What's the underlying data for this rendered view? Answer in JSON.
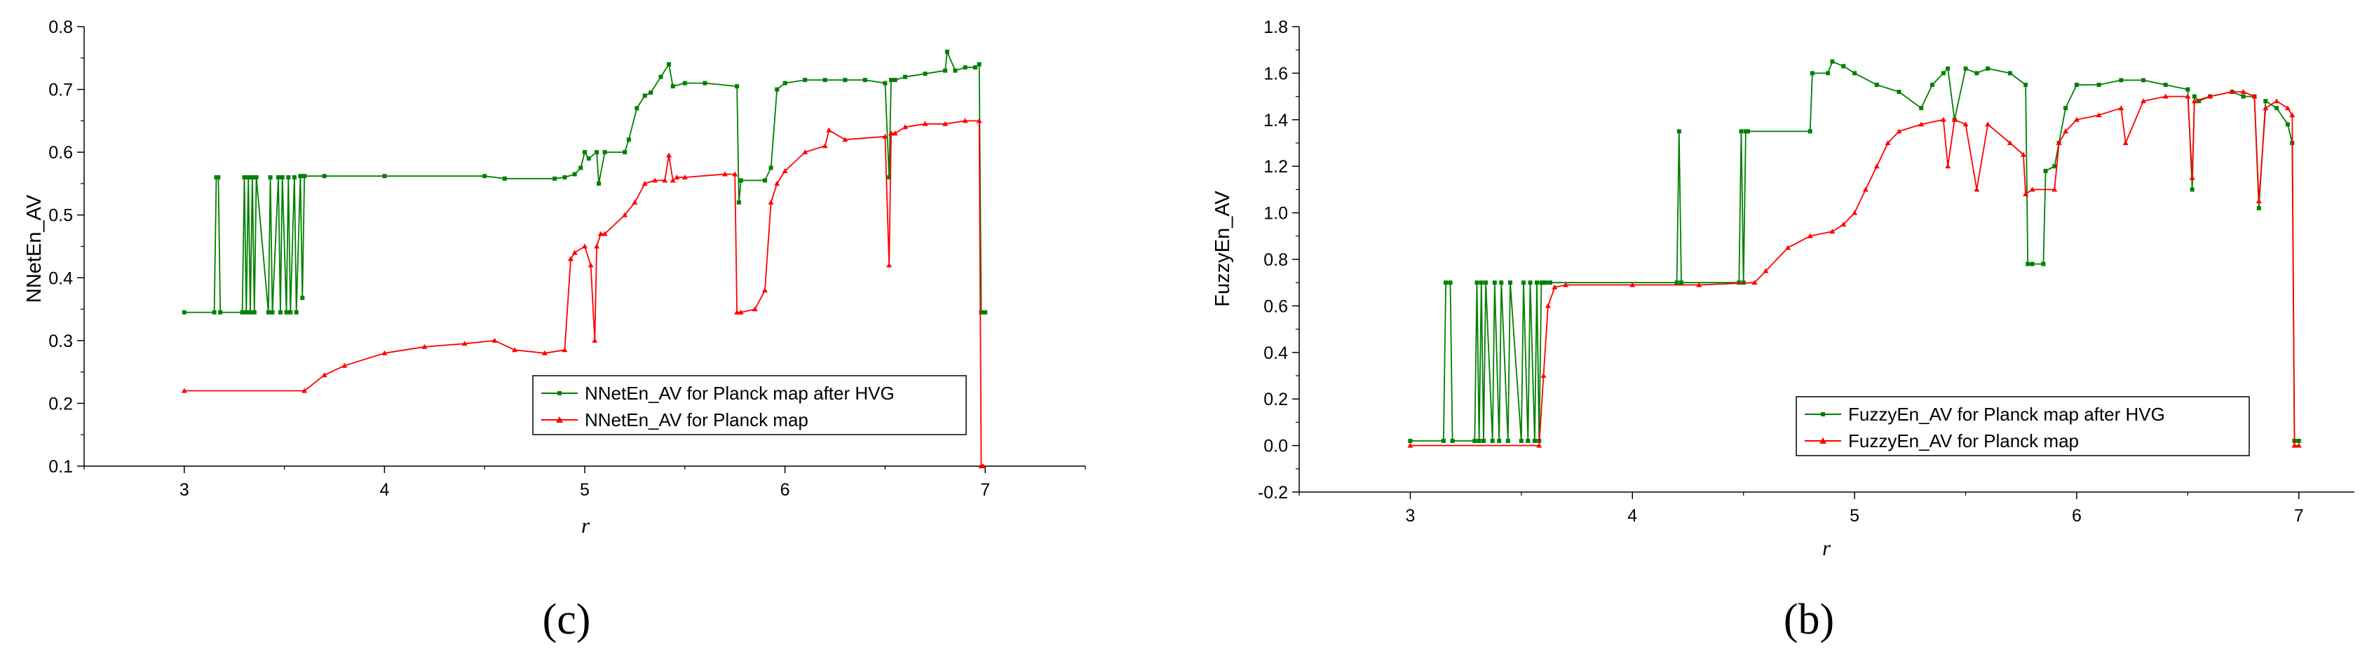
{
  "chart_data": [
    {
      "id": "c",
      "type": "line",
      "caption": "(c)",
      "xlabel": "r",
      "ylabel": "NNetEn_AV",
      "xlim": [
        2.5,
        7.5
      ],
      "ylim": [
        0.1,
        0.8
      ],
      "xticks": [
        3,
        4,
        5,
        6,
        7
      ],
      "yticks": [
        0.1,
        0.2,
        0.3,
        0.4,
        0.5,
        0.6,
        0.7,
        0.8
      ],
      "legend_position": "lower-right",
      "series": [
        {
          "name": "NNetEn_AV for Planck map after HVG",
          "color": "#008000",
          "x": [
            3.0,
            3.15,
            3.16,
            3.17,
            3.18,
            3.29,
            3.3,
            3.31,
            3.32,
            3.33,
            3.34,
            3.35,
            3.36,
            3.42,
            3.43,
            3.44,
            3.47,
            3.48,
            3.49,
            3.51,
            3.52,
            3.53,
            3.55,
            3.56,
            3.58,
            3.59,
            3.6,
            3.7,
            4.0,
            4.5,
            4.6,
            4.85,
            4.9,
            4.95,
            4.98,
            5.0,
            5.02,
            5.06,
            5.07,
            5.1,
            5.2,
            5.22,
            5.26,
            5.3,
            5.33,
            5.38,
            5.42,
            5.44,
            5.5,
            5.6,
            5.76,
            5.77,
            5.78,
            5.9,
            5.93,
            5.96,
            6.0,
            6.1,
            6.2,
            6.3,
            6.4,
            6.5,
            6.52,
            6.53,
            6.55,
            6.6,
            6.7,
            6.8,
            6.81,
            6.85,
            6.9,
            6.95,
            6.97,
            6.98,
            7.0
          ],
          "y": [
            0.345,
            0.345,
            0.56,
            0.56,
            0.345,
            0.345,
            0.56,
            0.345,
            0.56,
            0.345,
            0.56,
            0.345,
            0.56,
            0.345,
            0.56,
            0.345,
            0.56,
            0.345,
            0.56,
            0.345,
            0.56,
            0.345,
            0.56,
            0.345,
            0.562,
            0.368,
            0.562,
            0.562,
            0.562,
            0.562,
            0.558,
            0.558,
            0.56,
            0.565,
            0.575,
            0.6,
            0.59,
            0.6,
            0.55,
            0.6,
            0.6,
            0.62,
            0.67,
            0.69,
            0.695,
            0.72,
            0.74,
            0.705,
            0.71,
            0.71,
            0.705,
            0.52,
            0.555,
            0.555,
            0.575,
            0.7,
            0.71,
            0.715,
            0.715,
            0.715,
            0.715,
            0.71,
            0.56,
            0.715,
            0.715,
            0.72,
            0.725,
            0.73,
            0.76,
            0.73,
            0.735,
            0.735,
            0.74,
            0.345,
            0.345
          ]
        },
        {
          "name": "NNetEn_AV for Planck map",
          "color": "#ff0000",
          "x": [
            3.0,
            3.6,
            3.7,
            3.8,
            4.0,
            4.2,
            4.4,
            4.55,
            4.65,
            4.8,
            4.9,
            4.93,
            4.95,
            5.0,
            5.03,
            5.05,
            5.06,
            5.08,
            5.1,
            5.2,
            5.25,
            5.3,
            5.35,
            5.4,
            5.42,
            5.44,
            5.46,
            5.5,
            5.7,
            5.75,
            5.76,
            5.78,
            5.85,
            5.9,
            5.93,
            5.96,
            6.0,
            6.1,
            6.2,
            6.22,
            6.3,
            6.5,
            6.52,
            6.53,
            6.55,
            6.6,
            6.7,
            6.8,
            6.9,
            6.97,
            6.98,
            6.99
          ],
          "y": [
            0.22,
            0.22,
            0.245,
            0.26,
            0.28,
            0.29,
            0.295,
            0.3,
            0.285,
            0.28,
            0.285,
            0.43,
            0.44,
            0.45,
            0.42,
            0.3,
            0.45,
            0.47,
            0.47,
            0.5,
            0.52,
            0.55,
            0.555,
            0.555,
            0.595,
            0.555,
            0.56,
            0.56,
            0.565,
            0.565,
            0.345,
            0.345,
            0.35,
            0.38,
            0.52,
            0.55,
            0.57,
            0.6,
            0.61,
            0.635,
            0.62,
            0.625,
            0.42,
            0.63,
            0.63,
            0.64,
            0.645,
            0.645,
            0.65,
            0.65,
            0.1,
            0.1
          ]
        }
      ]
    },
    {
      "id": "b",
      "type": "line",
      "caption": "(b)",
      "xlabel": "r",
      "ylabel": "FuzzyEn_AV",
      "xlim": [
        2.5,
        7.25
      ],
      "ylim": [
        -0.2,
        1.8
      ],
      "xticks": [
        3,
        4,
        5,
        6,
        7
      ],
      "yticks": [
        -0.2,
        0.0,
        0.2,
        0.4,
        0.6,
        0.8,
        1.0,
        1.2,
        1.4,
        1.6,
        1.8
      ],
      "legend_position": "lower-right",
      "series": [
        {
          "name": "FuzzyEn_AV for Planck map after HVG",
          "color": "#008000",
          "x": [
            3.0,
            3.15,
            3.16,
            3.18,
            3.19,
            3.29,
            3.3,
            3.31,
            3.32,
            3.33,
            3.34,
            3.37,
            3.38,
            3.4,
            3.41,
            3.44,
            3.45,
            3.5,
            3.51,
            3.53,
            3.54,
            3.56,
            3.57,
            3.58,
            3.59,
            3.6,
            3.61,
            3.63,
            4.2,
            4.21,
            4.22,
            4.48,
            4.49,
            4.5,
            4.51,
            4.52,
            4.8,
            4.81,
            4.88,
            4.9,
            4.95,
            5.0,
            5.1,
            5.2,
            5.3,
            5.35,
            5.4,
            5.42,
            5.45,
            5.5,
            5.55,
            5.6,
            5.7,
            5.77,
            5.78,
            5.8,
            5.85,
            5.86,
            5.9,
            5.92,
            5.95,
            6.0,
            6.1,
            6.2,
            6.3,
            6.4,
            6.5,
            6.52,
            6.53,
            6.55,
            6.6,
            6.7,
            6.75,
            6.8,
            6.82,
            6.85,
            6.9,
            6.95,
            6.97,
            6.98,
            7.0
          ],
          "y": [
            0.02,
            0.02,
            0.7,
            0.7,
            0.02,
            0.02,
            0.7,
            0.02,
            0.7,
            0.02,
            0.7,
            0.02,
            0.7,
            0.02,
            0.7,
            0.02,
            0.7,
            0.02,
            0.7,
            0.02,
            0.7,
            0.02,
            0.7,
            0.02,
            0.7,
            0.7,
            0.7,
            0.7,
            0.7,
            1.35,
            0.7,
            0.7,
            1.35,
            0.7,
            1.35,
            1.35,
            1.35,
            1.6,
            1.6,
            1.65,
            1.63,
            1.6,
            1.55,
            1.52,
            1.45,
            1.55,
            1.6,
            1.62,
            1.4,
            1.62,
            1.6,
            1.62,
            1.6,
            1.55,
            0.78,
            0.78,
            0.78,
            1.18,
            1.2,
            1.3,
            1.45,
            1.55,
            1.55,
            1.57,
            1.57,
            1.55,
            1.53,
            1.1,
            1.5,
            1.48,
            1.5,
            1.52,
            1.5,
            1.5,
            1.02,
            1.48,
            1.45,
            1.38,
            1.3,
            0.02,
            0.02
          ]
        },
        {
          "name": "FuzzyEn_AV for Planck map",
          "color": "#ff0000",
          "x": [
            3.0,
            3.58,
            3.6,
            3.62,
            3.65,
            3.7,
            4.0,
            4.3,
            4.55,
            4.6,
            4.7,
            4.8,
            4.9,
            4.95,
            5.0,
            5.05,
            5.1,
            5.15,
            5.2,
            5.3,
            5.4,
            5.42,
            5.45,
            5.5,
            5.55,
            5.6,
            5.7,
            5.76,
            5.77,
            5.8,
            5.9,
            5.92,
            5.95,
            6.0,
            6.1,
            6.2,
            6.22,
            6.3,
            6.4,
            6.5,
            6.52,
            6.53,
            6.6,
            6.7,
            6.75,
            6.8,
            6.82,
            6.85,
            6.9,
            6.95,
            6.97,
            6.98,
            7.0
          ],
          "y": [
            0.0,
            0.0,
            0.3,
            0.6,
            0.68,
            0.69,
            0.69,
            0.69,
            0.7,
            0.75,
            0.85,
            0.9,
            0.92,
            0.95,
            1.0,
            1.1,
            1.2,
            1.3,
            1.35,
            1.38,
            1.4,
            1.2,
            1.4,
            1.38,
            1.1,
            1.38,
            1.3,
            1.25,
            1.08,
            1.1,
            1.1,
            1.3,
            1.35,
            1.4,
            1.42,
            1.45,
            1.3,
            1.48,
            1.5,
            1.5,
            1.15,
            1.48,
            1.5,
            1.52,
            1.52,
            1.5,
            1.05,
            1.45,
            1.48,
            1.45,
            1.42,
            0.0,
            0.0
          ]
        }
      ]
    }
  ]
}
